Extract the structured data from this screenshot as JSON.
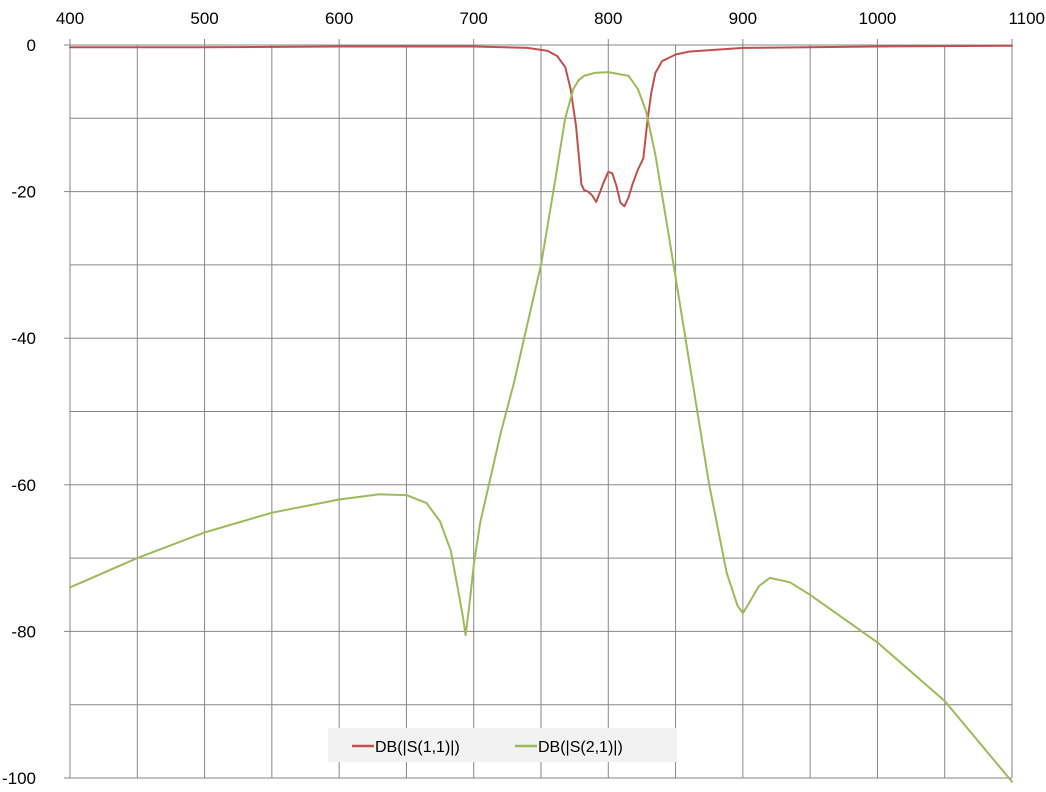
{
  "chart_data": {
    "type": "line",
    "title": "",
    "xlabel": "",
    "ylabel": "",
    "xlim": [
      400,
      1100
    ],
    "ylim": [
      -100,
      0
    ],
    "x_ticks": [
      400,
      500,
      600,
      700,
      800,
      900,
      1000,
      1100
    ],
    "y_ticks": [
      0,
      -20,
      -40,
      -60,
      -80,
      -100
    ],
    "x_tick_labels": [
      "400",
      "500",
      "600",
      "700",
      "800",
      "900",
      "1000",
      "1100"
    ],
    "y_tick_labels": [
      "0",
      "-20",
      "-40",
      "-60",
      "-80",
      "-100"
    ],
    "x_gridlines": [
      450,
      500,
      550,
      600,
      650,
      700,
      750,
      800,
      850,
      900,
      950,
      1000,
      1050,
      1100
    ],
    "y_gridlines": [
      0,
      -10,
      -20,
      -30,
      -40,
      -50,
      -60,
      -70,
      -80,
      -90,
      -100
    ],
    "x_axis_position": "top",
    "grid": true,
    "legend_position": "bottom-center",
    "series": [
      {
        "name": "DB(|S(1,1)|)",
        "color": "#c0504d",
        "x": [
          400,
          500,
          600,
          700,
          740,
          755,
          762,
          768,
          772,
          776,
          778,
          780,
          782,
          785,
          788,
          791,
          794,
          796,
          800,
          803,
          806,
          809,
          812,
          815,
          818,
          822,
          826,
          829,
          832,
          835,
          840,
          850,
          860,
          900,
          1000,
          1100
        ],
        "y": [
          -0.3,
          -0.3,
          -0.2,
          -0.2,
          -0.4,
          -0.8,
          -1.5,
          -3,
          -6,
          -11,
          -15,
          -19,
          -19.8,
          -20,
          -20.5,
          -21.4,
          -20,
          -19,
          -17.3,
          -17.5,
          -19.2,
          -21.5,
          -22,
          -20.8,
          -19,
          -17,
          -15.5,
          -10.5,
          -6.5,
          -3.8,
          -2.2,
          -1.3,
          -0.9,
          -0.4,
          -0.2,
          -0.1
        ]
      },
      {
        "name": "DB(|S(2,1)|)",
        "color": "#9bbb59",
        "x": [
          400,
          450,
          500,
          550,
          600,
          630,
          650,
          665,
          675,
          683,
          688,
          692,
          694,
          697,
          700,
          705,
          710,
          720,
          730,
          740,
          750,
          760,
          768,
          774,
          778,
          782,
          790,
          800,
          815,
          822,
          828,
          835,
          845,
          860,
          875,
          888,
          896,
          900,
          905,
          912,
          920,
          935,
          950,
          1000,
          1050,
          1100
        ],
        "y": [
          -74,
          -70,
          -66.5,
          -63.8,
          -62,
          -61.3,
          -61.4,
          -62.5,
          -65,
          -69,
          -74,
          -78,
          -80.5,
          -76,
          -71,
          -65,
          -61,
          -53,
          -46,
          -38,
          -30,
          -19,
          -10,
          -6,
          -4.8,
          -4.2,
          -3.8,
          -3.7,
          -4.2,
          -6,
          -9,
          -15,
          -26,
          -43,
          -60,
          -72,
          -76.5,
          -77.5,
          -76,
          -73.8,
          -72.7,
          -73.3,
          -75,
          -81.5,
          -89.5,
          -100.5
        ]
      }
    ]
  }
}
